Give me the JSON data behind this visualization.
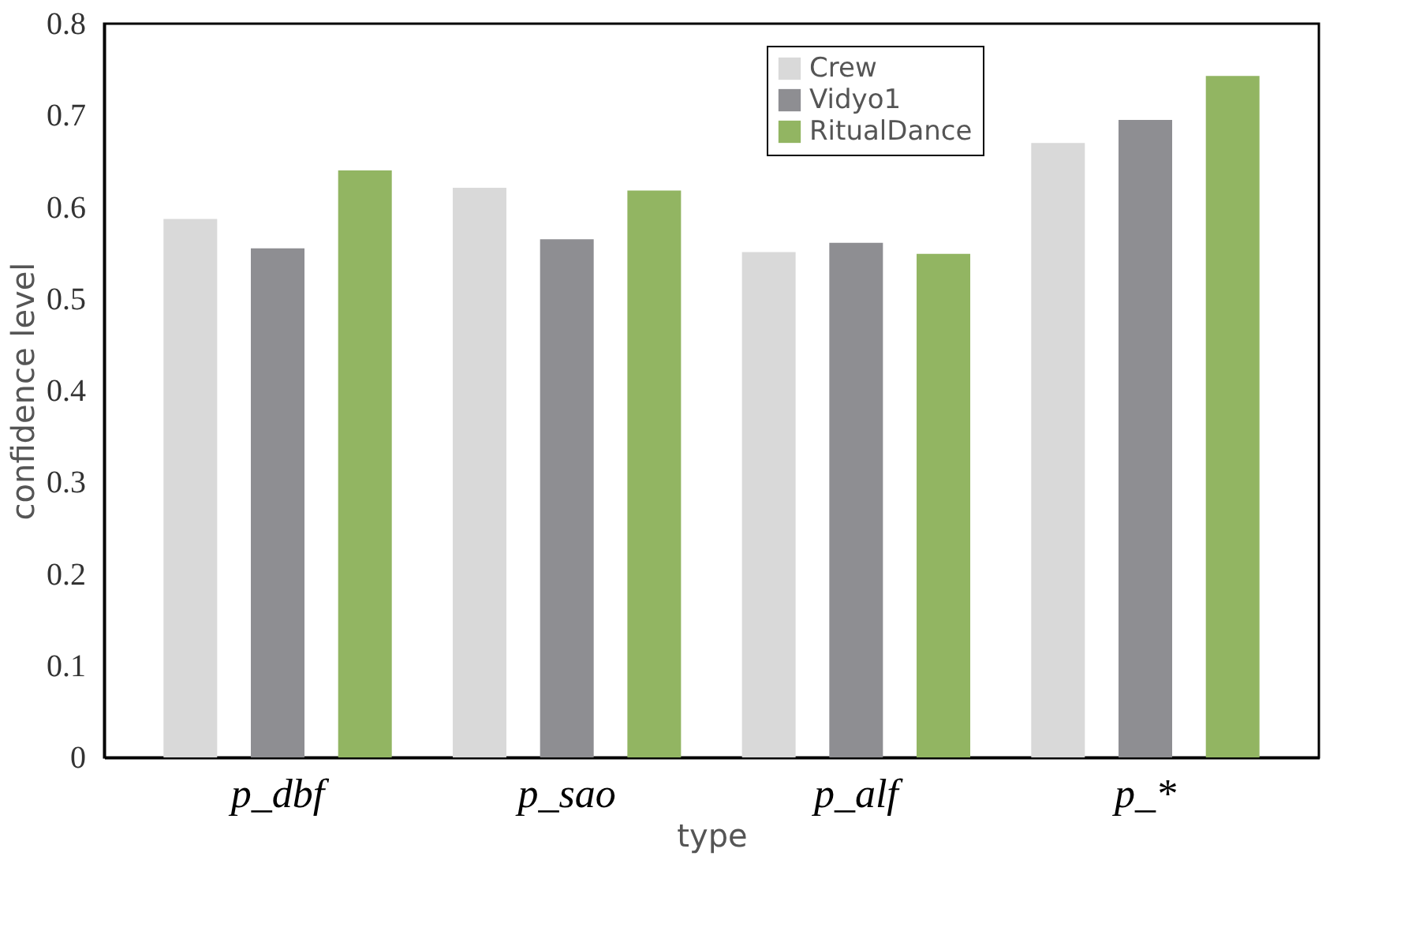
{
  "chart_data": {
    "type": "bar",
    "xlabel": "type",
    "ylabel": "confidence level",
    "categories": [
      "p_dbf",
      "p_sao",
      "p_alf",
      "p_*"
    ],
    "series": [
      {
        "name": "Crew",
        "color": "#d9d9d9",
        "values": [
          0.587,
          0.621,
          0.551,
          0.67
        ]
      },
      {
        "name": "Vidyo1",
        "color": "#8e8e92",
        "values": [
          0.555,
          0.565,
          0.561,
          0.695
        ]
      },
      {
        "name": "RitualDance",
        "color": "#92b562",
        "values": [
          0.64,
          0.618,
          0.549,
          0.743
        ]
      }
    ],
    "ylim": [
      0,
      0.8
    ],
    "yticks": [
      0,
      0.1,
      0.2,
      0.3,
      0.4,
      0.5,
      0.6,
      0.7,
      0.8
    ],
    "grid": false,
    "legend": "top right"
  }
}
